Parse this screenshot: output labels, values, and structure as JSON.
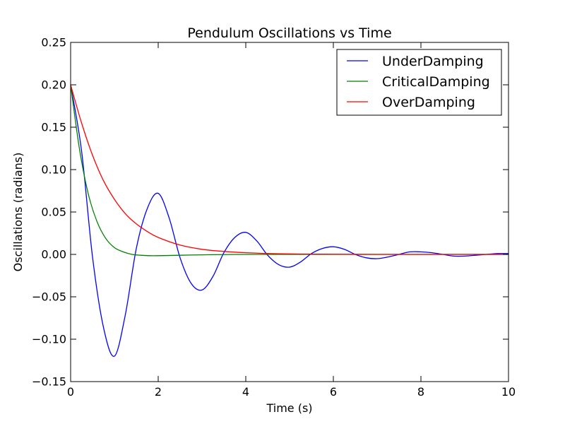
{
  "chart_data": {
    "type": "line",
    "title": "Pendulum Oscillations vs Time",
    "xlabel": "Time (s)",
    "ylabel": "Oscillations (radians)",
    "xlim": [
      0,
      10
    ],
    "ylim": [
      -0.15,
      0.25
    ],
    "x_ticks": [
      "0",
      "2",
      "4",
      "6",
      "8",
      "10"
    ],
    "y_ticks": [
      "−0.15",
      "−0.10",
      "−0.05",
      "0.00",
      "0.05",
      "0.10",
      "0.15",
      "0.20",
      "0.25"
    ],
    "grid": false,
    "legend_position": "top-right",
    "series": [
      {
        "name": "UnderDamping",
        "color": "#0000ff",
        "x": [
          0,
          0.25,
          0.5,
          0.75,
          1.0,
          1.25,
          1.5,
          1.75,
          2.0,
          2.25,
          2.5,
          2.75,
          3.0,
          3.25,
          3.5,
          3.75,
          4.0,
          4.25,
          4.5,
          4.75,
          5.0,
          5.25,
          5.5,
          5.75,
          6.0,
          6.25,
          6.5,
          6.75,
          7.0,
          7.25,
          7.5,
          7.75,
          8.0,
          8.25,
          8.5,
          8.75,
          9.0,
          9.25,
          9.5,
          9.75,
          10.0
        ],
        "y": [
          0.2,
          0.122,
          -0.003,
          -0.086,
          -0.12,
          -0.071,
          0.007,
          0.054,
          0.072,
          0.043,
          -0.004,
          -0.034,
          -0.042,
          -0.026,
          0.002,
          0.02,
          0.026,
          0.016,
          -0.001,
          -0.012,
          -0.015,
          -0.009,
          0.001,
          0.007,
          0.009,
          0.006,
          0.0,
          -0.004,
          -0.005,
          -0.003,
          0.0,
          0.003,
          0.003,
          0.002,
          0.0,
          -0.002,
          -0.002,
          -0.001,
          0.0,
          0.001,
          0.001
        ]
      },
      {
        "name": "CriticalDamping",
        "color": "#008000",
        "x": [
          0,
          0.2,
          0.4,
          0.6,
          0.8,
          1.0,
          1.2,
          1.4,
          1.6,
          1.8,
          2.0,
          2.5,
          3.0,
          3.5,
          4.0,
          5.0,
          6.0,
          7.0,
          8.0,
          9.0,
          10.0
        ],
        "y": [
          0.2,
          0.125,
          0.072,
          0.039,
          0.019,
          0.008,
          0.003,
          0.0,
          -0.001,
          -0.0015,
          -0.0015,
          -0.001,
          -0.0005,
          -0.0002,
          0.0,
          0.0,
          0.0,
          0.0,
          0.0,
          0.0,
          0.0
        ]
      },
      {
        "name": "OverDamping",
        "color": "#ff0000",
        "x": [
          0,
          0.25,
          0.5,
          0.75,
          1.0,
          1.25,
          1.5,
          1.75,
          2.0,
          2.5,
          3.0,
          3.5,
          4.0,
          4.5,
          5.0,
          5.5,
          6.0,
          7.0,
          8.0,
          9.0,
          10.0
        ],
        "y": [
          0.2,
          0.155,
          0.117,
          0.087,
          0.065,
          0.048,
          0.036,
          0.027,
          0.02,
          0.011,
          0.006,
          0.0035,
          0.002,
          0.0011,
          0.0006,
          0.0003,
          0.0002,
          0.0,
          0.0,
          0.0,
          0.0
        ]
      }
    ]
  }
}
